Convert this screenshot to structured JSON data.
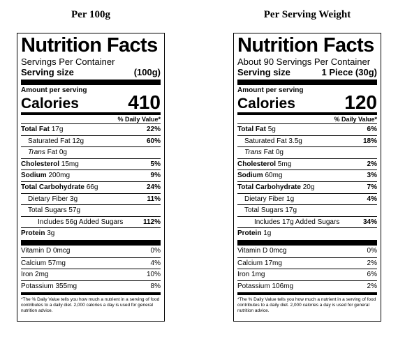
{
  "headings": {
    "left": "Per 100g",
    "right": "Per Serving Weight"
  },
  "labels": {
    "left": {
      "title": "Nutrition Facts",
      "servings": "Servings Per Container",
      "serving_size_label": "Serving size",
      "serving_size_value": "(100g)",
      "amount_per_serving": "Amount per serving",
      "calories_label": "Calories",
      "calories_value": "410",
      "dv_header": "% Daily Value*",
      "total_fat_label": "Total Fat",
      "total_fat_amt": "17g",
      "total_fat_dv": "22%",
      "sat_fat_label": "Saturated Fat",
      "sat_fat_amt": "12g",
      "sat_fat_dv": "60%",
      "trans_fat_label": "Trans",
      "trans_fat_rest": "Fat 0g",
      "cholesterol_label": "Cholesterol",
      "cholesterol_amt": "15mg",
      "cholesterol_dv": "5%",
      "sodium_label": "Sodium",
      "sodium_amt": "200mg",
      "sodium_dv": "9%",
      "carb_label": "Total Carbohydrate",
      "carb_amt": "66g",
      "carb_dv": "24%",
      "fiber_label": "Dietary Fiber",
      "fiber_amt": "3g",
      "fiber_dv": "11%",
      "sugars_text": "Total Sugars 57g",
      "added_sugars_text": "Includes 56g Added Sugars",
      "added_sugars_dv": "112%",
      "protein_label": "Protein",
      "protein_amt": "3g",
      "vitd_text": "Vitamin D 0mcg",
      "vitd_dv": "0%",
      "calcium_text": "Calcium 57mg",
      "calcium_dv": "4%",
      "iron_text": "Iron 2mg",
      "iron_dv": "10%",
      "potassium_text": "Potassium 355mg",
      "potassium_dv": "8%",
      "footnote": "*The % Daily Value tells you how much a nutrient in a serving of food contributes to a daily diet. 2,000 calories a day is used for general nutrition advice."
    },
    "right": {
      "title": "Nutrition Facts",
      "servings": "About 90 Servings Per Container",
      "serving_size_label": "Serving size",
      "serving_size_value": "1 Piece (30g)",
      "amount_per_serving": "Amount per serving",
      "calories_label": "Calories",
      "calories_value": "120",
      "dv_header": "% Daily Value*",
      "total_fat_label": "Total Fat",
      "total_fat_amt": "5g",
      "total_fat_dv": "6%",
      "sat_fat_label": "Saturated Fat",
      "sat_fat_amt": "3.5g",
      "sat_fat_dv": "18%",
      "trans_fat_label": "Trans",
      "trans_fat_rest": "Fat 0g",
      "cholesterol_label": "Cholesterol",
      "cholesterol_amt": "5mg",
      "cholesterol_dv": "2%",
      "sodium_label": "Sodium",
      "sodium_amt": "60mg",
      "sodium_dv": "3%",
      "carb_label": "Total Carbohydrate",
      "carb_amt": "20g",
      "carb_dv": "7%",
      "fiber_label": "Dietary Fiber",
      "fiber_amt": "1g",
      "fiber_dv": "4%",
      "sugars_text": "Total Sugars 17g",
      "added_sugars_text": "Includes 17g Added Sugars",
      "added_sugars_dv": "34%",
      "protein_label": "Protein",
      "protein_amt": "1g",
      "vitd_text": "Vitamin D 0mcg",
      "vitd_dv": "0%",
      "calcium_text": "Calcium 17mg",
      "calcium_dv": "2%",
      "iron_text": "Iron 1mg",
      "iron_dv": "6%",
      "potassium_text": "Potassium 106mg",
      "potassium_dv": "2%",
      "footnote": "*The % Daily Value tells you how much a nutrient in a serving of food contributes to a daily diet. 2,000 calories a day is used for general nutrition advice."
    }
  }
}
